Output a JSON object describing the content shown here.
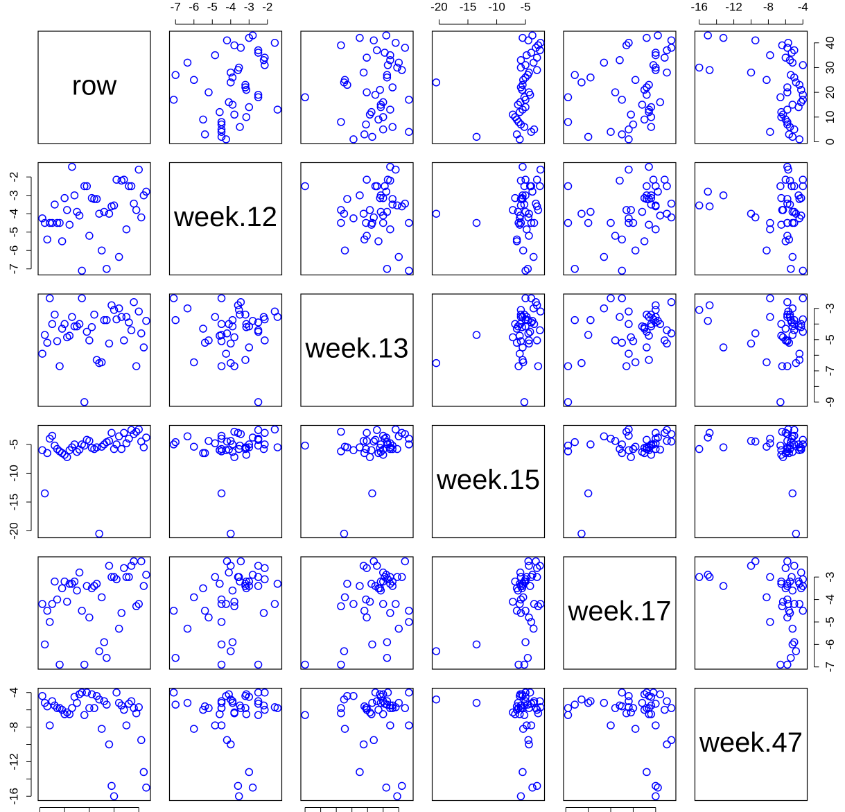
{
  "chart_data": {
    "type": "scatter-matrix",
    "variables": [
      {
        "name": "row",
        "lim": [
          -0.7,
          44.7
        ],
        "ticks": [
          0,
          10,
          20,
          30,
          40
        ],
        "values": [
          1,
          2,
          3,
          4,
          5,
          6,
          7,
          8,
          9,
          10,
          11,
          12,
          13,
          14,
          15,
          16,
          17,
          18,
          19,
          20,
          21,
          22,
          23,
          24,
          25,
          26,
          27,
          28,
          29,
          30,
          31,
          32,
          33,
          34,
          35,
          36,
          37,
          38,
          39,
          40,
          41,
          42,
          43
        ]
      },
      {
        "name": "week.12",
        "lim": [
          -7.33,
          -1.22
        ],
        "ticks": [
          -7,
          -6,
          -5,
          -4,
          -3,
          -2
        ],
        "values": [
          -4.25,
          -4.5,
          -5.4,
          -4.5,
          -4.5,
          -3.5,
          -4.5,
          -4.5,
          -5.5,
          -3.15,
          -3.8,
          -4.6,
          -1.45,
          -3.0,
          -3.9,
          -4.1,
          -7.1,
          -2.5,
          -2.5,
          -5.2,
          -3.15,
          -3.2,
          -3.2,
          -4.0,
          -6.0,
          -3.9,
          -7.0,
          -4.0,
          -3.6,
          -3.55,
          -2.15,
          -6.35,
          -2.2,
          -2.15,
          -4.85,
          -2.5,
          -2.5,
          -3.45,
          -3.8,
          -1.6,
          -4.2,
          -3.0,
          -2.8
        ]
      },
      {
        "name": "week.13",
        "lim": [
          -9.27,
          -2.08
        ],
        "ticks": [
          -9,
          -8,
          -7,
          -6,
          -5,
          -4,
          -3
        ],
        "values": [
          -5.9,
          -4.7,
          -5.2,
          -2.35,
          -4.0,
          -3.4,
          -5.1,
          -6.7,
          -4.3,
          -4.0,
          -4.85,
          -4.75,
          -3.55,
          -4.15,
          -4.15,
          -4.0,
          -2.35,
          -9.0,
          -4.5,
          -5.05,
          -4.2,
          -3.4,
          -6.3,
          -6.5,
          -6.45,
          -3.75,
          -3.75,
          -5.25,
          -2.8,
          -3.1,
          -3.7,
          -3.0,
          -3.55,
          -5.05,
          -3.55,
          -3.9,
          -4.4,
          -2.6,
          -6.7,
          -3.2,
          -4.6,
          -5.5,
          -3.8
        ]
      },
      {
        "name": "week.15",
        "lim": [
          -21.2,
          -1.7
        ],
        "ticks": [
          -20,
          -15,
          -10,
          -5
        ],
        "values": [
          -6.0,
          -13.5,
          -6.5,
          -4.0,
          -3.5,
          -5.2,
          -5.8,
          -6.2,
          -6.5,
          -6.8,
          -7.2,
          -6.0,
          -5.5,
          -5.0,
          -6.3,
          -5.9,
          -5.0,
          -5.2,
          -4.2,
          -4.4,
          -5.6,
          -5.8,
          -5.5,
          -20.5,
          -5.4,
          -5.0,
          -4.6,
          -4.4,
          -3.0,
          -5.8,
          -5.0,
          -3.6,
          -5.8,
          -3.0,
          -4.8,
          -4.0,
          -2.5,
          -3.2,
          -2.8,
          -2.4,
          -4.5,
          -5.5,
          -3.8
        ]
      },
      {
        "name": "week.17",
        "lim": [
          -7.1,
          -2.1
        ],
        "ticks": [
          -7,
          -6,
          -5,
          -4,
          -3
        ],
        "values": [
          -4.2,
          -6.0,
          -4.5,
          -5.0,
          -4.2,
          -3.2,
          -4.0,
          -6.9,
          -3.5,
          -3.2,
          -4.1,
          -3.3,
          -3.3,
          -3.2,
          -3.6,
          -2.8,
          -4.5,
          -6.9,
          -3.4,
          -4.8,
          -3.5,
          -3.4,
          -3.3,
          -6.3,
          -3.9,
          -5.9,
          -6.6,
          -2.5,
          -3.0,
          -3.0,
          -3.1,
          -5.3,
          -4.6,
          -2.6,
          -3.0,
          -3.0,
          -2.5,
          -2.3,
          -4.3,
          -4.2,
          -2.3,
          -3.4,
          -2.9
        ]
      },
      {
        "name": "week.47",
        "lim": [
          -16.5,
          -3.5
        ],
        "ticks": [
          -16,
          -14,
          -12,
          -10,
          -8,
          -6,
          -4
        ],
        "values": [
          -4.4,
          -5.2,
          -5.6,
          -7.8,
          -5.0,
          -5.5,
          -5.8,
          -5.8,
          -6.0,
          -6.5,
          -6.3,
          -6.5,
          -5.8,
          -4.5,
          -5.2,
          -4.2,
          -4.0,
          -6.6,
          -4.0,
          -5.8,
          -4.2,
          -5.8,
          -4.4,
          -4.8,
          -8.2,
          -5.0,
          -5.4,
          -10.0,
          -14.8,
          -16.0,
          -4.0,
          -5.2,
          -5.5,
          -6.0,
          -7.8,
          -5.3,
          -5.0,
          -5.8,
          -6.4,
          -5.7,
          -9.5,
          -13.2,
          -15.0
        ]
      }
    ],
    "point_color": "#0000ff"
  }
}
